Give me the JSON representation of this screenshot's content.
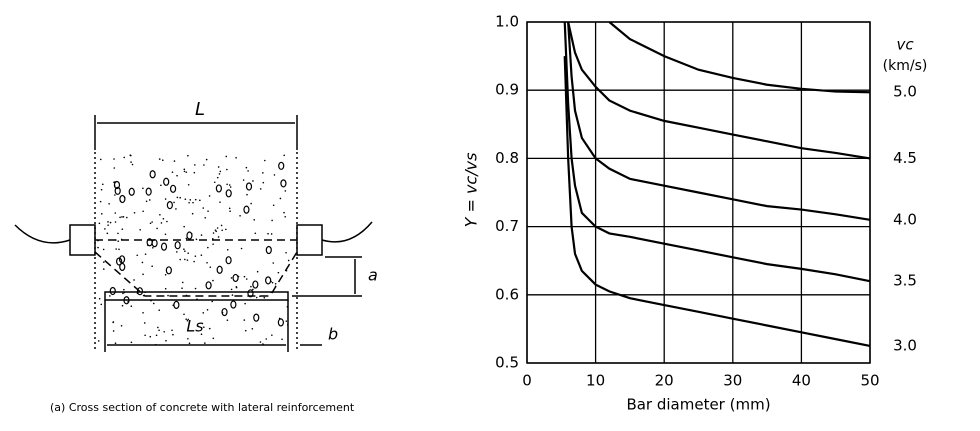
{
  "diagram": {
    "label_l": "L",
    "label_a": "a",
    "label_ls": "Ls",
    "label_b": "b",
    "caption": "(a) Cross section of concrete with lateral reinforcement"
  },
  "chart_data": {
    "type": "line",
    "xlabel": "Bar diameter (mm)",
    "ylabel": "Y = vc/vs",
    "legend_title": "vc",
    "legend_unit": "(km/s)",
    "xlim": [
      0,
      50
    ],
    "xticks": [
      0,
      10,
      20,
      30,
      40,
      50
    ],
    "ylim": [
      0.5,
      1.0
    ],
    "yticks": [
      0.5,
      0.6,
      0.7,
      0.8,
      0.9,
      {
        "value": 1.0,
        "label": "1.0"
      }
    ],
    "grid": true,
    "series": [
      {
        "name": "5.0",
        "color": "#000000",
        "x": [
          12,
          15,
          20,
          25,
          30,
          35,
          40,
          45,
          50
        ],
        "values": [
          1.0,
          0.975,
          0.95,
          0.93,
          0.918,
          0.908,
          0.902,
          0.898,
          0.897
        ]
      },
      {
        "name": "4.5",
        "color": "#000000",
        "x": [
          6,
          7,
          8,
          10,
          12,
          15,
          20,
          25,
          30,
          35,
          40,
          45,
          50
        ],
        "values": [
          1.0,
          0.955,
          0.93,
          0.905,
          0.885,
          0.87,
          0.855,
          0.845,
          0.835,
          0.825,
          0.815,
          0.808,
          0.8
        ]
      },
      {
        "name": "4.0",
        "color": "#000000",
        "x": [
          6,
          6.5,
          7,
          8,
          10,
          12,
          15,
          20,
          25,
          30,
          35,
          40,
          45,
          50
        ],
        "values": [
          1.0,
          0.92,
          0.87,
          0.83,
          0.8,
          0.785,
          0.77,
          0.76,
          0.75,
          0.74,
          0.73,
          0.725,
          0.718,
          0.71
        ]
      },
      {
        "name": "3.5",
        "color": "#000000",
        "x": [
          5.5,
          6,
          6.5,
          7,
          8,
          10,
          12,
          15,
          20,
          25,
          30,
          35,
          40,
          45,
          50
        ],
        "values": [
          1.0,
          0.88,
          0.8,
          0.76,
          0.72,
          0.7,
          0.69,
          0.685,
          0.675,
          0.665,
          0.655,
          0.645,
          0.638,
          0.63,
          0.62
        ]
      },
      {
        "name": "3.0",
        "color": "#000000",
        "x": [
          5.5,
          6,
          6.5,
          7,
          8,
          10,
          12,
          15,
          20,
          25,
          30,
          35,
          40,
          45,
          50
        ],
        "values": [
          0.95,
          0.8,
          0.7,
          0.66,
          0.635,
          0.615,
          0.605,
          0.595,
          0.585,
          0.575,
          0.565,
          0.555,
          0.545,
          0.535,
          0.525
        ]
      }
    ]
  }
}
